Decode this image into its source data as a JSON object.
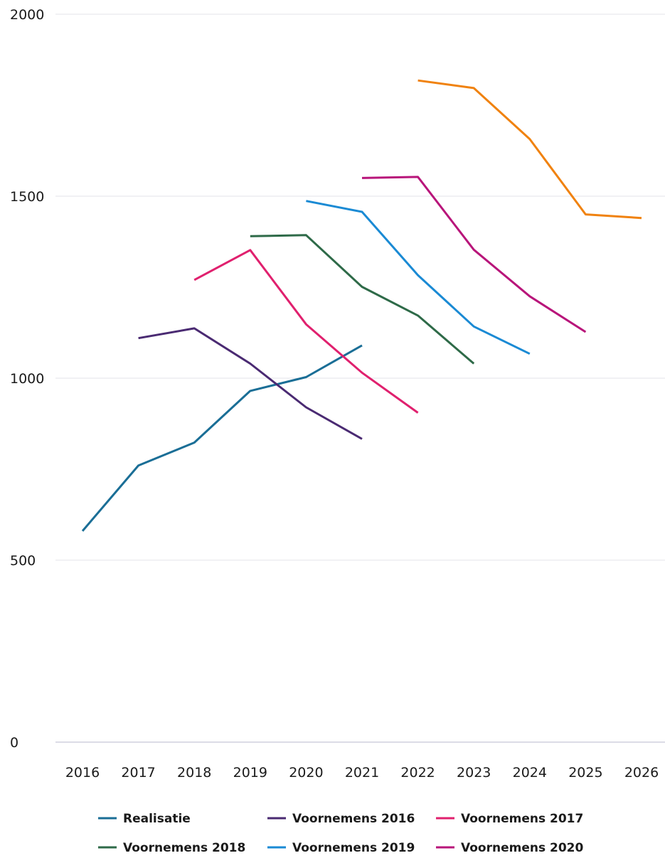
{
  "chart_data": {
    "type": "line",
    "title": "",
    "xlabel": "",
    "ylabel": "",
    "x": [
      2016,
      2017,
      2018,
      2019,
      2020,
      2021,
      2022,
      2023,
      2024,
      2025,
      2026
    ],
    "xticks": [
      "2016",
      "2017",
      "2018",
      "2019",
      "2020",
      "2021",
      "2022",
      "2023",
      "2024",
      "2025",
      "2026"
    ],
    "ylim": [
      0,
      2000
    ],
    "yticks": [
      "0",
      "500",
      "1000",
      "1500",
      "2000"
    ],
    "grid": true,
    "legend_position": "bottom",
    "series": [
      {
        "name": "Realisatie",
        "color": "#1a6e96",
        "points": [
          [
            2016,
            580
          ],
          [
            2017,
            760
          ],
          [
            2018,
            823
          ],
          [
            2019,
            965
          ],
          [
            2020,
            1003
          ],
          [
            2021,
            1090
          ]
        ]
      },
      {
        "name": "Voornemens 2016",
        "color": "#4a2a72",
        "points": [
          [
            2017,
            1110
          ],
          [
            2018,
            1137
          ],
          [
            2019,
            1040
          ],
          [
            2020,
            920
          ],
          [
            2021,
            833
          ]
        ]
      },
      {
        "name": "Voornemens 2017",
        "color": "#e0206e",
        "points": [
          [
            2018,
            1270
          ],
          [
            2019,
            1352
          ],
          [
            2020,
            1148
          ],
          [
            2021,
            1015
          ],
          [
            2022,
            905
          ]
        ]
      },
      {
        "name": "Voornemens 2018",
        "color": "#2e6a48",
        "points": [
          [
            2019,
            1390
          ],
          [
            2020,
            1393
          ],
          [
            2021,
            1251
          ],
          [
            2022,
            1172
          ],
          [
            2023,
            1040
          ]
        ]
      },
      {
        "name": "Voornemens 2019",
        "color": "#1a8ad4",
        "points": [
          [
            2020,
            1487
          ],
          [
            2021,
            1457
          ],
          [
            2022,
            1283
          ],
          [
            2023,
            1142
          ],
          [
            2024,
            1067
          ]
        ]
      },
      {
        "name": "Voornemens 2020",
        "color": "#b8157a",
        "points": [
          [
            2021,
            1550
          ],
          [
            2022,
            1553
          ],
          [
            2023,
            1353
          ],
          [
            2024,
            1225
          ],
          [
            2025,
            1127
          ]
        ]
      },
      {
        "name": "",
        "color": "#f0820f",
        "points": [
          [
            2022,
            1818
          ],
          [
            2023,
            1797
          ],
          [
            2024,
            1657
          ],
          [
            2025,
            1450
          ],
          [
            2026,
            1440
          ]
        ]
      }
    ]
  }
}
